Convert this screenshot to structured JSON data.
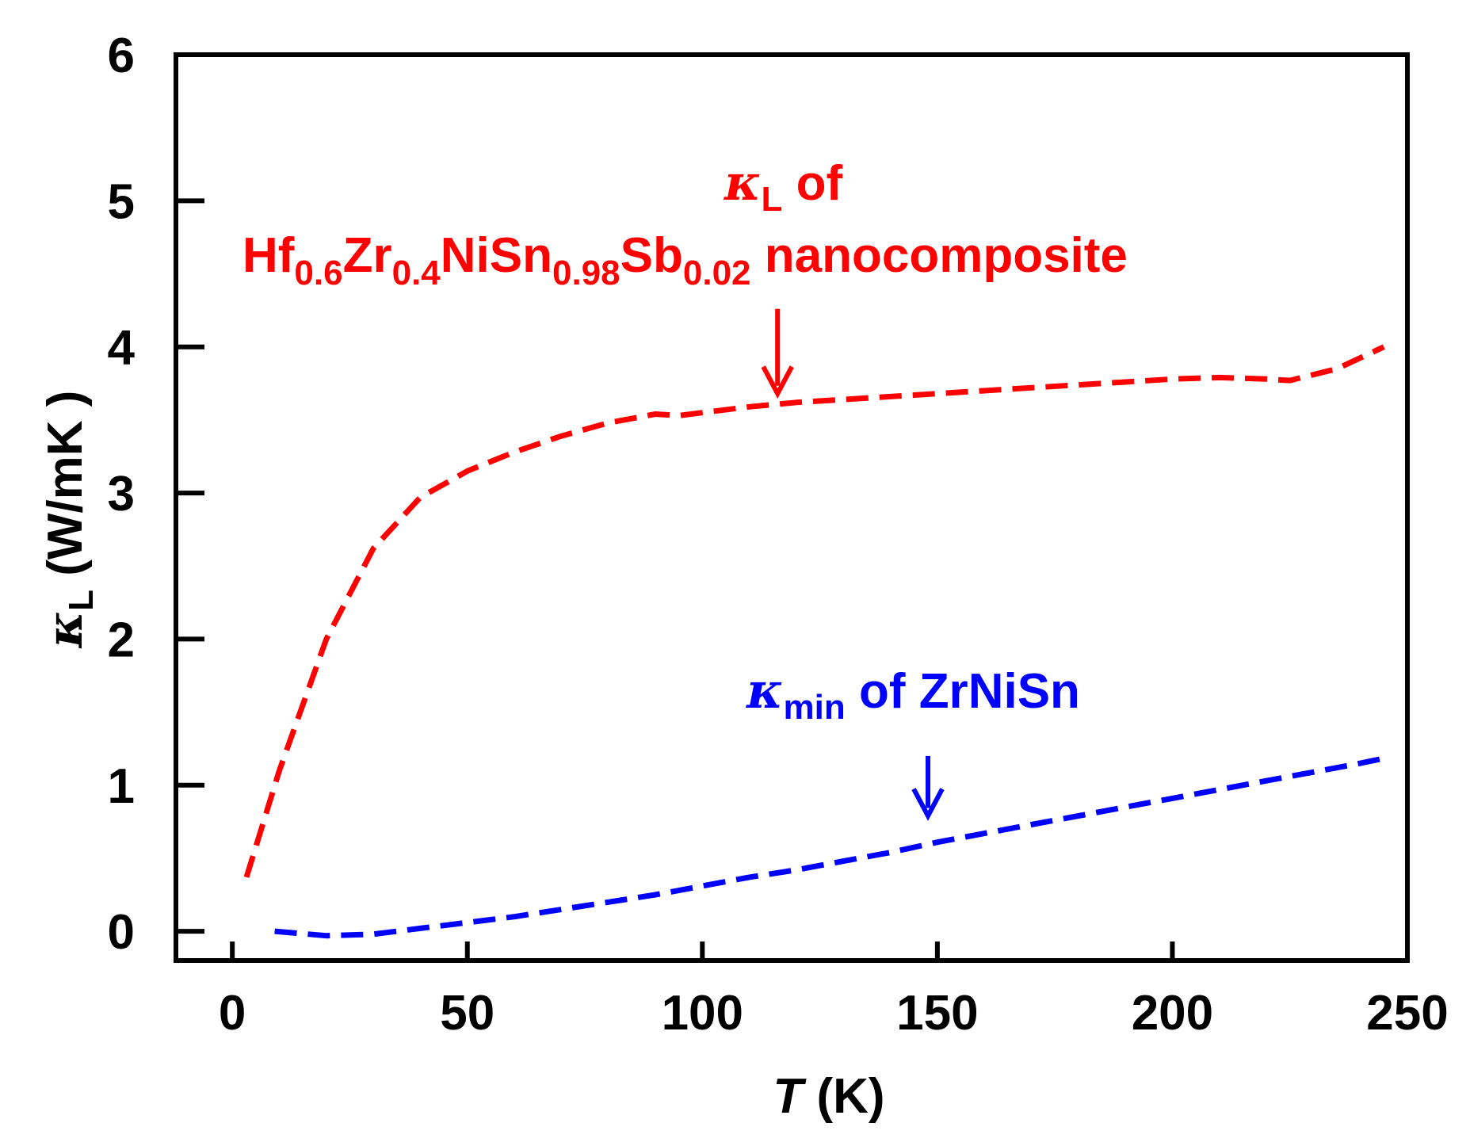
{
  "chart_data": {
    "type": "line",
    "title": "",
    "xlabel": {
      "italic": "T",
      "rest": " (K)"
    },
    "ylabel": {
      "symbol": "κ",
      "sub": "L",
      "rest": " (W/mK )"
    },
    "xlim": [
      -12,
      250
    ],
    "ylim": [
      -0.2,
      6
    ],
    "xticks": [
      0,
      50,
      100,
      150,
      200,
      250
    ],
    "yticks": [
      0,
      1,
      2,
      3,
      4,
      5,
      6
    ],
    "grid": false,
    "legend": "none",
    "series": [
      {
        "color": "#ff0000",
        "dash": "dashed",
        "x": [
          3,
          10,
          20,
          30,
          40,
          50,
          60,
          70,
          80,
          90,
          95,
          100,
          110,
          120,
          130,
          140,
          150,
          160,
          170,
          180,
          190,
          200,
          210,
          220,
          225,
          235,
          245
        ],
        "y": [
          0.37,
          1.1,
          2.0,
          2.62,
          2.97,
          3.15,
          3.28,
          3.39,
          3.48,
          3.54,
          3.53,
          3.55,
          3.59,
          3.62,
          3.64,
          3.66,
          3.68,
          3.7,
          3.72,
          3.74,
          3.76,
          3.78,
          3.79,
          3.78,
          3.77,
          3.85,
          4.0
        ]
      },
      {
        "color": "#0000ff",
        "dash": "dashed",
        "x": [
          9,
          20,
          30,
          40,
          50,
          60,
          70,
          80,
          90,
          100,
          110,
          120,
          130,
          140,
          150,
          160,
          170,
          180,
          190,
          200,
          210,
          220,
          230,
          240,
          246
        ],
        "y": [
          0.0,
          -0.03,
          -0.02,
          0.02,
          0.06,
          0.1,
          0.15,
          0.2,
          0.25,
          0.31,
          0.37,
          0.42,
          0.48,
          0.54,
          0.61,
          0.67,
          0.73,
          0.79,
          0.85,
          0.91,
          0.97,
          1.03,
          1.09,
          1.15,
          1.19
        ]
      }
    ],
    "annotations": [
      {
        "id": "red",
        "color": "#ff0000",
        "line1": {
          "symbol": "κ",
          "sub": "L",
          "rest": " of"
        },
        "line2": [
          {
            "t": "Hf"
          },
          {
            "s": "0.6"
          },
          {
            "t": "Zr"
          },
          {
            "s": "0.4"
          },
          {
            "t": "NiSn"
          },
          {
            "s": "0.98"
          },
          {
            "t": "Sb"
          },
          {
            "s": "0.02"
          },
          {
            "t": " nanocomposite"
          }
        ],
        "arrow_x": 116,
        "arrow_from_y": 4.26,
        "arrow_to_y": 3.68
      },
      {
        "id": "blue",
        "color": "#0000ff",
        "line1": {
          "symbol": "κ",
          "sub": "min",
          "rest": " of ZrNiSn"
        },
        "arrow_x": 148,
        "arrow_from_y": 1.2,
        "arrow_to_y": 0.79
      }
    ]
  }
}
